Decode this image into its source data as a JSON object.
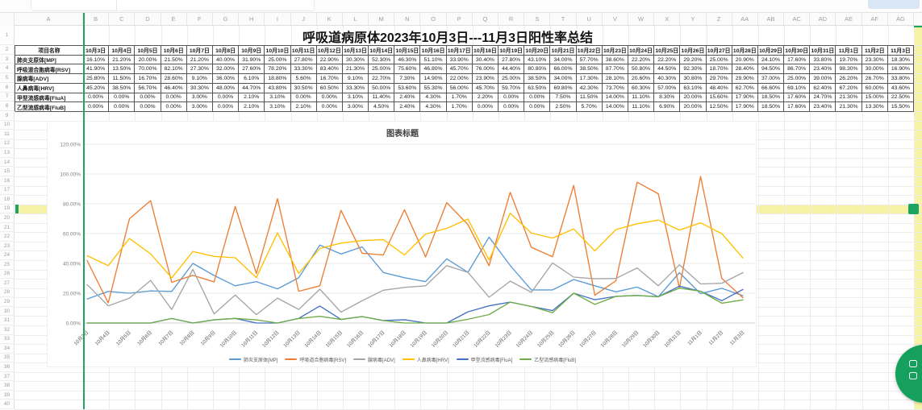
{
  "sheet": {
    "title": "呼吸道病原体2023年10月3日---11月3日阳性率总结",
    "corner_header": "项目名称",
    "column_letters": [
      "A",
      "B",
      "C",
      "D",
      "E",
      "F",
      "G",
      "H",
      "I",
      "J",
      "K",
      "L",
      "M",
      "N",
      "O",
      "P",
      "Q",
      "R",
      "S",
      "T",
      "U",
      "V",
      "W",
      "X",
      "Y",
      "Z",
      "AA",
      "AB",
      "AC",
      "AD",
      "AE",
      "AF",
      "AG"
    ],
    "row_count": 40,
    "selected_row": 19
  },
  "chart_data": {
    "type": "line",
    "title": "图表标题",
    "x": [
      "10月3日",
      "10月4日",
      "10月5日",
      "10月6日",
      "10月7日",
      "10月8日",
      "10月9日",
      "10月10日",
      "10月11日",
      "10月12日",
      "10月13日",
      "10月14日",
      "10月15日",
      "10月16日",
      "10月17日",
      "10月18日",
      "10月19日",
      "10月20日",
      "10月21日",
      "10月22日",
      "10月23日",
      "10月24日",
      "10月25日",
      "10月26日",
      "10月27日",
      "10月28日",
      "10月29日",
      "10月30日",
      "10月31日",
      "11月1日",
      "11月2日",
      "11月3日"
    ],
    "y_tick_labels": [
      "0.00%",
      "20.00%",
      "40.00%",
      "60.00%",
      "80.00%",
      "100.00%",
      "120.00%"
    ],
    "ylim_percent": [
      0,
      120
    ],
    "grid": true,
    "legend_position": "bottom",
    "series": [
      {
        "name": "肺炎支原体[MP]",
        "color": "#5B9BD5",
        "values": [
          16.1,
          21.2,
          20.0,
          21.5,
          21.2,
          40.0,
          31.9,
          25.0,
          27.8,
          22.9,
          30.3,
          52.3,
          46.3,
          51.1,
          33.9,
          30.4,
          27.8,
          43.1,
          34.0,
          57.7,
          38.6,
          22.2,
          22.2,
          29.2,
          25.0,
          20.9,
          24.1,
          17.6,
          33.8,
          19.7,
          23.3,
          18.3
        ]
      },
      {
        "name": "呼吸道合胞病毒[RSV]",
        "color": "#ED7D31",
        "values": [
          41.9,
          13.5,
          70.0,
          82.1,
          27.3,
          32.0,
          27.6,
          78.2,
          33.3,
          83.4,
          21.3,
          25.0,
          75.6,
          46.8,
          45.7,
          76.0,
          44.4,
          80.8,
          66.0,
          38.5,
          87.7,
          50.8,
          44.5,
          92.3,
          18.7,
          28.4,
          94.5,
          86.7,
          23.4,
          98.3,
          30.0,
          16.9
        ]
      },
      {
        "name": "腺病毒[ADV]",
        "color": "#A5A5A5",
        "values": [
          25.8,
          11.5,
          16.7,
          28.6,
          9.1,
          36.0,
          6.1,
          18.8,
          5.6,
          16.7,
          9.1,
          22.7,
          7.3,
          14.9,
          22.0,
          23.9,
          25.0,
          38.5,
          34.0,
          17.3,
          28.1,
          20.6,
          40.3,
          30.8,
          29.7,
          29.9,
          37.0,
          25.0,
          39.0,
          26.2,
          26.7,
          33.8
        ]
      },
      {
        "name": "人鼻病毒[HRV]",
        "color": "#FFC000",
        "values": [
          45.2,
          38.5,
          56.7,
          46.4,
          30.3,
          48.0,
          44.7,
          43.8,
          30.5,
          60.5,
          33.3,
          50.0,
          53.6,
          55.3,
          56.0,
          45.7,
          59.7,
          63.5,
          69.8,
          42.3,
          73.7,
          60.3,
          57.0,
          63.1,
          48.4,
          62.7,
          66.6,
          69.1,
          62.4,
          67.2,
          60.0,
          43.6
        ]
      },
      {
        "name": "甲型流感病毒[FluA]",
        "color": "#4472C4",
        "values": [
          0.0,
          0.0,
          0.0,
          0.0,
          3.0,
          0.0,
          2.1,
          3.1,
          0.0,
          0.0,
          3.1,
          11.4,
          2.4,
          4.3,
          1.7,
          2.2,
          0.0,
          0.0,
          7.5,
          11.5,
          14.0,
          11.1,
          8.3,
          20.0,
          15.6,
          17.9,
          18.5,
          17.6,
          24.7,
          21.3,
          15.0,
          22.5
        ]
      },
      {
        "name": "乙型流感病毒[FluB]",
        "color": "#70AD47",
        "values": [
          0.0,
          0.0,
          0.0,
          0.0,
          3.0,
          0.0,
          2.1,
          3.1,
          2.1,
          0.0,
          3.0,
          4.5,
          2.4,
          4.3,
          1.7,
          0.0,
          0.0,
          0.0,
          2.5,
          5.7,
          14.0,
          11.1,
          6.9,
          20.0,
          12.5,
          17.9,
          18.5,
          17.6,
          23.4,
          21.3,
          13.3,
          15.5
        ]
      }
    ]
  },
  "colors": {
    "selection_yellow": "#f7f3a6",
    "selection_green": "#1ea363",
    "frozen_divider_green": "#21a463",
    "fab_green": "#16a05d",
    "table_border": "#555555",
    "gridline": "#ececec",
    "chart_gridline": "#e8e8e8"
  },
  "icons": {
    "fab": "shapes-icon"
  }
}
